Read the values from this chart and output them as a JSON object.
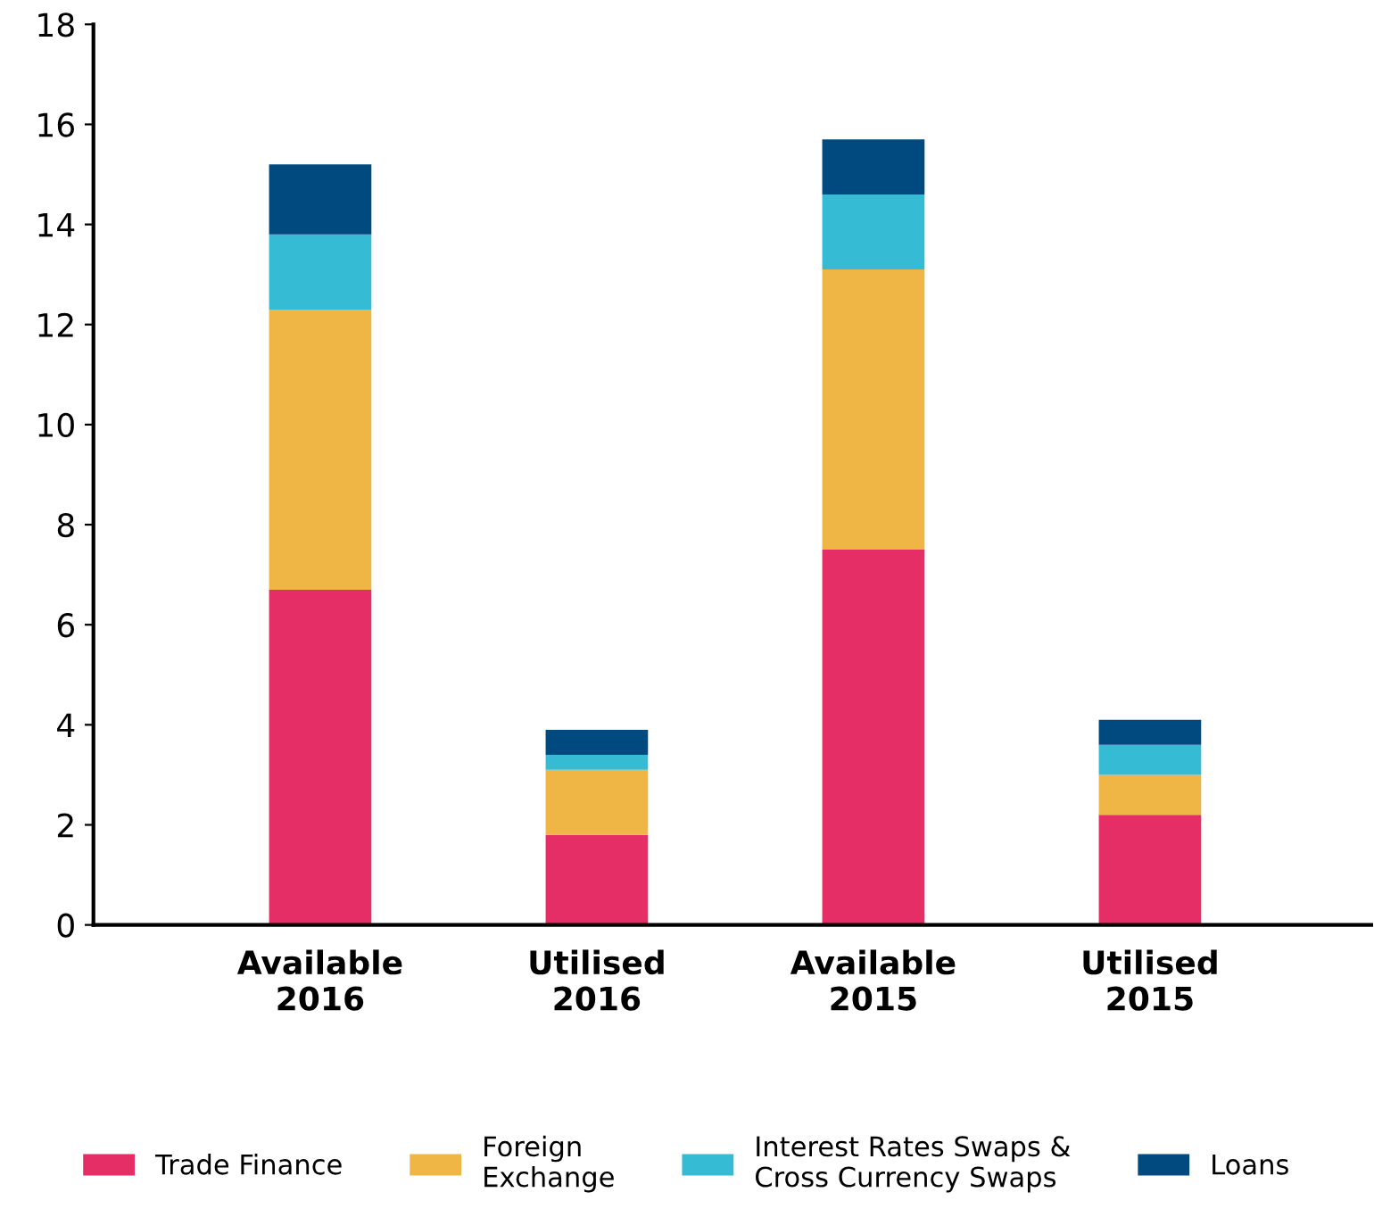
{
  "chart_data": {
    "type": "bar",
    "stacked": true,
    "categories": [
      "Available\n2016",
      "Utilised\n2016",
      "Available\n2015",
      "Utilised\n2015"
    ],
    "series": [
      {
        "name": "Trade Finance",
        "color": "#e52d66",
        "values": [
          6.7,
          1.8,
          7.5,
          2.2
        ]
      },
      {
        "name": "Foreign\nExchange",
        "color": "#efb646",
        "values": [
          5.6,
          1.3,
          5.6,
          0.8
        ]
      },
      {
        "name": "Interest Rates Swaps &\nCross Currency Swaps",
        "color": "#35bbd3",
        "values": [
          1.5,
          0.3,
          1.5,
          0.6
        ]
      },
      {
        "name": "Loans",
        "color": "#004a7f",
        "values": [
          1.4,
          0.5,
          1.1,
          0.5
        ]
      }
    ],
    "ylim": [
      0,
      18
    ],
    "yticks": [
      0,
      2,
      4,
      6,
      8,
      10,
      12,
      14,
      16,
      18
    ],
    "grid": false,
    "legend": "bottom"
  }
}
